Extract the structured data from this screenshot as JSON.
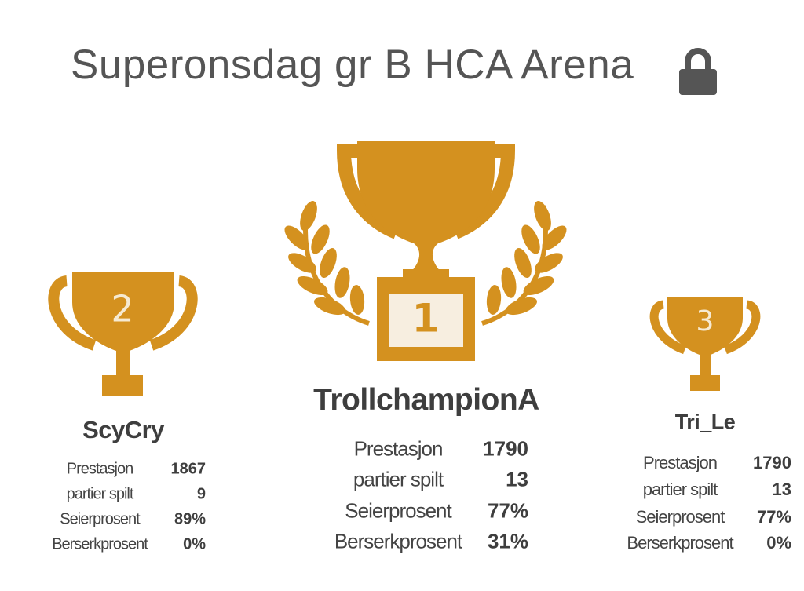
{
  "header": {
    "title": "Superonsdag gr B HCA Arena"
  },
  "podium": [
    {
      "rank": "2",
      "name": "ScyCry",
      "stats": [
        {
          "label": "Prestasjon",
          "value": "1867"
        },
        {
          "label": "partier spilt",
          "value": "9"
        },
        {
          "label": "Seierprosent",
          "value": "89%"
        },
        {
          "label": "Berserkprosent",
          "value": "0%"
        }
      ]
    },
    {
      "rank": "1",
      "name": "TrollchampionA",
      "stats": [
        {
          "label": "Prestasjon",
          "value": "1790"
        },
        {
          "label": "partier spilt",
          "value": "13"
        },
        {
          "label": "Seierprosent",
          "value": "77%"
        },
        {
          "label": "Berserkprosent",
          "value": "31%"
        }
      ]
    },
    {
      "rank": "3",
      "name": "Tri_Le",
      "stats": [
        {
          "label": "Prestasjon",
          "value": "1790"
        },
        {
          "label": "partier spilt",
          "value": "13"
        },
        {
          "label": "Seierprosent",
          "value": "77%"
        },
        {
          "label": "Berserkprosent",
          "value": "0%"
        }
      ]
    }
  ]
}
